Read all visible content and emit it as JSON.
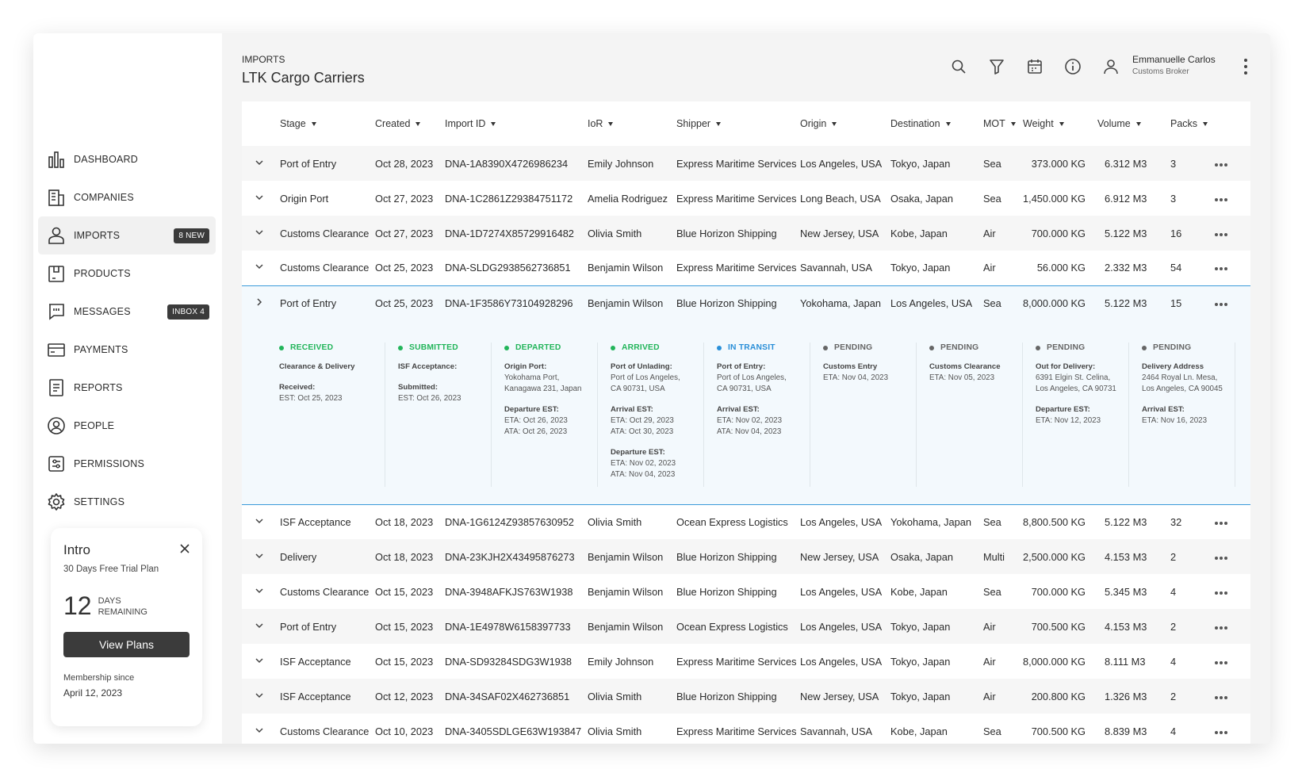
{
  "sidebar": {
    "nav": [
      {
        "label": "DASHBOARD"
      },
      {
        "label": "COMPANIES"
      },
      {
        "label": "IMPORTS",
        "badge": "8 NEW",
        "active": true
      },
      {
        "label": "PRODUCTS"
      },
      {
        "label": "MESSAGES",
        "badge": "INBOX 4"
      },
      {
        "label": "PAYMENTS"
      },
      {
        "label": "REPORTS"
      },
      {
        "label": "PEOPLE"
      },
      {
        "label": "PERMISSIONS"
      },
      {
        "label": "SETTINGS"
      }
    ],
    "intro": {
      "title": "Intro",
      "plan": "30 Days Free Trial Plan",
      "days": "12",
      "days_label_1": "DAYS",
      "days_label_2": "REMAINING",
      "button": "View Plans",
      "membership_label": "Membership since",
      "membership_date": "April 12, 2023"
    }
  },
  "header": {
    "section": "IMPORTS",
    "title": "LTK Cargo Carriers",
    "user_name": "Emmanuelle Carlos",
    "user_role": "Customs Broker"
  },
  "table": {
    "columns": [
      "Stage",
      "Created",
      "Import ID",
      "IoR",
      "Shipper",
      "Origin",
      "Destination",
      "MOT",
      "Weight",
      "Volume",
      "Packs"
    ],
    "rows": [
      {
        "cells": [
          "Port of Entry",
          "Oct 28, 2023",
          "DNA-1A8390X4726986234",
          "Emily Johnson",
          "Express Maritime Services",
          "Los Angeles, USA",
          "Tokyo, Japan",
          "Sea",
          "373.000 KG",
          "6.312 M3",
          "3"
        ]
      },
      {
        "cells": [
          "Origin Port",
          "Oct 27, 2023",
          "DNA-1C2861Z29384751172",
          "Amelia Rodriguez",
          "Express Maritime Services",
          "Long Beach, USA",
          "Osaka, Japan",
          "Sea",
          "1,450.000 KG",
          "6.912 M3",
          "3"
        ]
      },
      {
        "cells": [
          "Customs Clearance",
          "Oct 27, 2023",
          "DNA-1D7274X85729916482",
          "Olivia Smith",
          "Blue Horizon Shipping",
          "New Jersey, USA",
          "Kobe, Japan",
          "Air",
          "700.000 KG",
          "5.122 M3",
          "16"
        ]
      },
      {
        "cells": [
          "Customs Clearance",
          "Oct 25, 2023",
          "DNA-SLDG2938562736851",
          "Benjamin Wilson",
          "Express Maritime Services",
          "Savannah, USA",
          "Tokyo, Japan",
          "Air",
          "56.000 KG",
          "2.332 M3",
          "54"
        ]
      },
      {
        "cells": [
          "Port of Entry",
          "Oct 25, 2023",
          "DNA-1F3586Y73104928296",
          "Benjamin Wilson",
          "Blue Horizon Shipping",
          "Yokohama, Japan",
          "Los Angeles, USA",
          "Sea",
          "8,000.000 KG",
          "5.122 M3",
          "15"
        ],
        "steps": [
          {
            "status": "RECEIVED",
            "color": "#22b55a",
            "blocks": [
              {
                "label": "Clearance & Delivery",
                "lines": []
              },
              {
                "label": "Received:",
                "lines": [
                  "EST: Oct 25, 2023"
                ]
              }
            ]
          },
          {
            "status": "SUBMITTED",
            "color": "#22b55a",
            "blocks": [
              {
                "label": "ISF Acceptance:",
                "lines": []
              },
              {
                "label": "Submitted:",
                "lines": [
                  "EST: Oct 26, 2023"
                ]
              }
            ]
          },
          {
            "status": "DEPARTED",
            "color": "#22b55a",
            "blocks": [
              {
                "label": "Origin Port:",
                "lines": [
                  "Yokohama Port,",
                  "Kanagawa 231, Japan"
                ]
              },
              {
                "label": "Departure EST:",
                "lines": [
                  "ETA: Oct 26, 2023",
                  "ATA: Oct 26, 2023"
                ]
              }
            ]
          },
          {
            "status": "ARRIVED",
            "color": "#22b55a",
            "blocks": [
              {
                "label": "Port of Unlading:",
                "lines": [
                  "Port of Los Angeles,",
                  "CA 90731, USA"
                ]
              },
              {
                "label": "Arrival EST:",
                "lines": [
                  "ETA: Oct 29, 2023",
                  "ATA: Oct 30, 2023"
                ]
              },
              {
                "label": "Departure EST:",
                "lines": [
                  "ETA: Nov 02, 2023",
                  "ATA: Nov 04, 2023"
                ]
              }
            ]
          },
          {
            "status": "IN TRANSIT",
            "color": "#2a8fd8",
            "blocks": [
              {
                "label": "Port of Entry:",
                "lines": [
                  "Port of Los Angeles,",
                  "CA 90731, USA"
                ]
              },
              {
                "label": "Arrival EST:",
                "lines": [
                  "ETA: Nov 02, 2023",
                  "ATA: Nov 04, 2023"
                ]
              }
            ]
          },
          {
            "status": "PENDING",
            "color": "#666666",
            "blocks": [
              {
                "label": "Customs Entry",
                "lines": [
                  "ETA: Nov 04, 2023"
                ]
              }
            ]
          },
          {
            "status": "PENDING",
            "color": "#666666",
            "blocks": [
              {
                "label": "Customs Clearance",
                "lines": [
                  "ETA: Nov 05, 2023"
                ]
              }
            ]
          },
          {
            "status": "PENDING",
            "color": "#666666",
            "blocks": [
              {
                "label": "Out for Delivery:",
                "lines": [
                  "6391 Elgin St. Celina,",
                  "Los Angeles, CA 90731"
                ]
              },
              {
                "label": "Departure EST:",
                "lines": [
                  "ETA: Nov 12, 2023"
                ]
              }
            ]
          },
          {
            "status": "PENDING",
            "color": "#666666",
            "blocks": [
              {
                "label": "Delivery Address",
                "lines": [
                  "2464 Royal Ln. Mesa,",
                  "Los Angeles, CA 90045"
                ]
              },
              {
                "label": "Arrival EST:",
                "lines": [
                  "ETA: Nov 16, 2023"
                ]
              }
            ]
          }
        ]
      },
      {
        "cells": [
          "ISF Acceptance",
          "Oct 18, 2023",
          "DNA-1G6124Z93857630952",
          "Olivia Smith",
          "Ocean Express Logistics",
          "Los Angeles, USA",
          "Yokohama, Japan",
          "Sea",
          "8,800.500 KG",
          "5.122 M3",
          "32"
        ]
      },
      {
        "cells": [
          "Delivery",
          "Oct 18, 2023",
          "DNA-23KJH2X43495876273",
          "Benjamin Wilson",
          "Blue Horizon Shipping",
          "New Jersey, USA",
          "Osaka, Japan",
          "Multi",
          "2,500.000 KG",
          "4.153 M3",
          "2"
        ]
      },
      {
        "cells": [
          "Customs Clearance",
          "Oct 15, 2023",
          "DNA-3948AFKJS763W1938",
          "Benjamin Wilson",
          "Blue Horizon Shipping",
          "Los Angeles, USA",
          "Kobe, Japan",
          "Sea",
          "700.000 KG",
          "5.345 M3",
          "4"
        ]
      },
      {
        "cells": [
          "Port of Entry",
          "Oct 15, 2023",
          "DNA-1E4978W6158397733",
          "Benjamin Wilson",
          "Ocean Express Logistics",
          "Los Angeles, USA",
          "Tokyo, Japan",
          "Air",
          "700.500 KG",
          "4.153 M3",
          "2"
        ]
      },
      {
        "cells": [
          "ISF Acceptance",
          "Oct 15, 2023",
          "DNA-SD93284SDG3W1938",
          "Emily Johnson",
          "Express Maritime Services",
          "Los Angeles, USA",
          "Tokyo, Japan",
          "Air",
          "8,000.000 KG",
          "8.111 M3",
          "4"
        ]
      },
      {
        "cells": [
          "ISF Acceptance",
          "Oct 12, 2023",
          "DNA-34SAF02X462736851",
          "Olivia Smith",
          "Blue Horizon Shipping",
          "New Jersey, USA",
          "Tokyo, Japan",
          "Air",
          "200.800 KG",
          "1.326 M3",
          "2"
        ]
      },
      {
        "cells": [
          "Customs Clearance",
          "Oct 10, 2023",
          "DNA-3405SDLGE63W193847",
          "Olivia Smith",
          "Express Maritime Services",
          "Savannah, USA",
          "Kobe, Japan",
          "Sea",
          "700.500 KG",
          "8.839 M3",
          "4"
        ]
      }
    ]
  }
}
